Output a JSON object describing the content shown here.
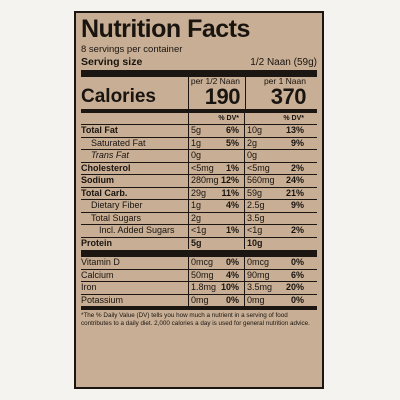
{
  "label": {
    "title": "Nutrition Facts",
    "servings": "8 servings per container",
    "serving_size_label": "Serving size",
    "serving_size_value": "1/2 Naan (59g)",
    "calories_label": "Calories",
    "col1_header": "per 1/2 Naan",
    "col2_header": "per 1 Naan",
    "col1_calories": "190",
    "col2_calories": "370",
    "dv_header": "% DV*",
    "rows": [
      {
        "name": "Total Fat",
        "v1": "5g",
        "p1": "6%",
        "v2": "10g",
        "p2": "13%"
      },
      {
        "name": "Saturated Fat",
        "v1": "1g",
        "p1": "5%",
        "v2": "2g",
        "p2": "9%"
      },
      {
        "name": "Trans Fat",
        "v1": "0g",
        "p1": "",
        "v2": "0g",
        "p2": ""
      },
      {
        "name": "Cholesterol",
        "v1": "<5mg",
        "p1": "1%",
        "v2": "<5mg",
        "p2": "2%"
      },
      {
        "name": "Sodium",
        "v1": "280mg",
        "p1": "12%",
        "v2": "560mg",
        "p2": "24%"
      },
      {
        "name": "Total Carb.",
        "v1": "29g",
        "p1": "11%",
        "v2": "59g",
        "p2": "21%"
      },
      {
        "name": "Dietary Fiber",
        "v1": "1g",
        "p1": "4%",
        "v2": "2.5g",
        "p2": "9%"
      },
      {
        "name": "Total Sugars",
        "v1": "2g",
        "p1": "",
        "v2": "3.5g",
        "p2": ""
      },
      {
        "name": "Incl. Added Sugars",
        "v1": "<1g",
        "p1": "1%",
        "v2": "<1g",
        "p2": "2%"
      },
      {
        "name": "Protein",
        "v1": "5g",
        "p1": "",
        "v2": "10g",
        "p2": ""
      }
    ],
    "minerals": [
      {
        "name": "Vitamin D",
        "v1": "0mcg",
        "p1": "0%",
        "v2": "0mcg",
        "p2": "0%"
      },
      {
        "name": "Calcium",
        "v1": "50mg",
        "p1": "4%",
        "v2": "90mg",
        "p2": "6%"
      },
      {
        "name": "Iron",
        "v1": "1.8mg",
        "p1": "10%",
        "v2": "3.5mg",
        "p2": "20%"
      },
      {
        "name": "Potassium",
        "v1": "0mg",
        "p1": "0%",
        "v2": "0mg",
        "p2": "0%"
      }
    ],
    "footnote": "*The % Daily Value (DV) tells you how much a nutrient in a serving of food contributes to a daily diet. 2,000 calories a day is used for general nutrition advice."
  }
}
